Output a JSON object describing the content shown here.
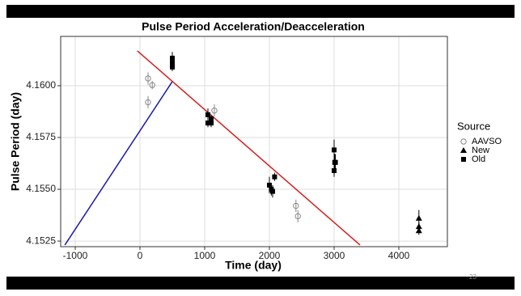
{
  "chart_data": {
    "type": "scatter",
    "title": "Pulse Period Acceleration/Deacceleration",
    "x_label": "Time (day)",
    "y_label": "Pulse Period (day)",
    "legend_title": "Source",
    "xlim": [
      -1225,
      4750
    ],
    "ylim": [
      4.15223,
      4.16238
    ],
    "xticks": [
      -1000,
      0,
      1000,
      2000,
      3000,
      4000
    ],
    "yticks": [
      4.1525,
      {
        "value": 4.155,
        "label": "4.1550"
      },
      4.1575,
      {
        "value": 4.16,
        "label": "4.1600"
      }
    ],
    "grid": true,
    "series": [
      {
        "name": "AAVSO",
        "color": "#888888",
        "marker": "circle",
        "x": [
          125,
          190,
          125,
          1150,
          2410,
          2440
        ],
        "values": [
          4.16035,
          4.16003,
          4.1592,
          4.1588,
          4.1542,
          4.1537
        ],
        "errors": [
          0.0003,
          0.0002,
          0.0003,
          0.0003,
          0.0003,
          0.0003
        ]
      },
      {
        "name": "New",
        "color": "#000000",
        "marker": "triangle",
        "x": [
          4310,
          4310,
          4310
        ],
        "values": [
          4.1536,
          4.1532,
          4.153
        ],
        "errors": [
          0.0004,
          0.0002,
          0.0002
        ]
      },
      {
        "name": "Old",
        "color": "#000000",
        "marker": "square",
        "x": [
          500,
          500,
          500,
          500,
          1050,
          1100,
          1050,
          1100,
          2000,
          2030,
          2050,
          2080,
          3000,
          3010,
          3020,
          3000
        ],
        "values": [
          4.16133,
          4.1611,
          4.161,
          4.1609,
          4.1586,
          4.1584,
          4.1582,
          4.1582,
          4.1552,
          4.155,
          4.1549,
          4.1556,
          4.1569,
          4.1563,
          4.1563,
          4.1559
        ],
        "errors": [
          0.0003,
          0.0002,
          0.0002,
          0.0002,
          0.0003,
          0.0002,
          0.0002,
          0.0002,
          0.0004,
          0.0003,
          0.0003,
          0.0002,
          0.0005,
          0.0004,
          0.0004,
          0.0003
        ]
      }
    ],
    "lines": [
      {
        "color": "#1a1aa6",
        "x": [
          -1160,
          500
        ],
        "values": [
          4.15231,
          4.1602
        ]
      },
      {
        "color": "#d42020",
        "x": [
          -40,
          3400
        ],
        "values": [
          4.16168,
          4.15231
        ]
      }
    ],
    "page_number": "23"
  }
}
